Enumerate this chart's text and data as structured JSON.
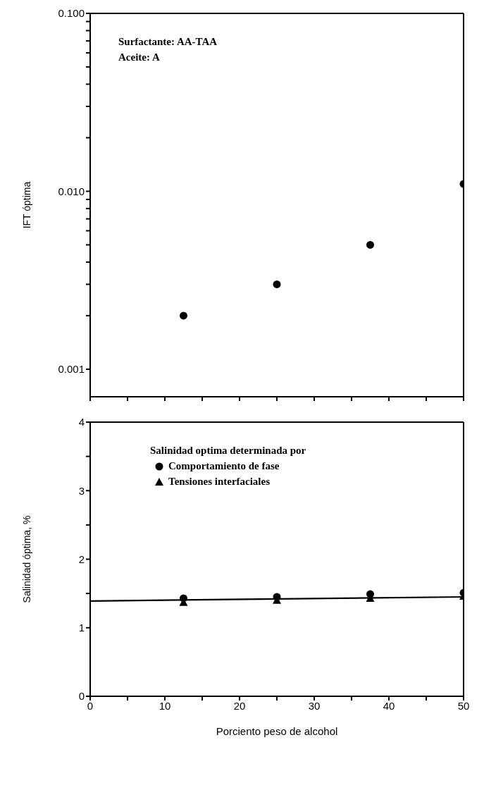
{
  "chart_data": [
    {
      "type": "scatter",
      "ylabel": "IFT óptima",
      "log": "y",
      "annotations": [
        "Surfactante: AA-TAA",
        "Aceite: A"
      ],
      "xlim": [
        0,
        50
      ],
      "xticks": [
        0,
        {
          "value": 5,
          "label": null
        },
        10,
        {
          "value": 15,
          "label": null
        },
        20,
        {
          "value": 25,
          "label": null
        },
        30,
        {
          "value": 35,
          "label": null
        },
        40,
        {
          "value": 45,
          "label": null
        },
        50
      ],
      "ylim": [
        0.0007,
        0.1
      ],
      "yticks": [
        {
          "value": 0.001,
          "label": "0.001"
        },
        {
          "value": 0.002,
          "label": null
        },
        {
          "value": 0.003,
          "label": null
        },
        {
          "value": 0.004,
          "label": null
        },
        {
          "value": 0.005,
          "label": null
        },
        {
          "value": 0.006,
          "label": null
        },
        {
          "value": 0.007,
          "label": null
        },
        {
          "value": 0.008,
          "label": null
        },
        {
          "value": 0.009,
          "label": null
        },
        {
          "value": 0.01,
          "label": "0.010"
        },
        {
          "value": 0.02,
          "label": null
        },
        {
          "value": 0.03,
          "label": null
        },
        {
          "value": 0.04,
          "label": null
        },
        {
          "value": 0.05,
          "label": null
        },
        {
          "value": 0.06,
          "label": null
        },
        {
          "value": 0.07,
          "label": null
        },
        {
          "value": 0.08,
          "label": null
        },
        {
          "value": 0.09,
          "label": null
        },
        {
          "value": 0.1,
          "label": "0.100"
        }
      ],
      "tick_labels": "y",
      "marker": "circle",
      "x": [
        12.5,
        25,
        37.5,
        50
      ],
      "series": [
        {
          "color": "#000000",
          "values": [
            0.002,
            0.003,
            0.005,
            0.011
          ]
        }
      ]
    },
    {
      "type": "scatter",
      "xlabel": "Porciento peso de alcohol",
      "ylabel": "Salinidad óptima, %",
      "legend_title": "Salinidad optima determinada por",
      "legend": "top",
      "xlim": [
        0,
        50
      ],
      "xticks": [
        0,
        {
          "value": 5,
          "label": null
        },
        10,
        {
          "value": 15,
          "label": null
        },
        20,
        {
          "value": 25,
          "label": null
        },
        30,
        {
          "value": 35,
          "label": null
        },
        40,
        {
          "value": 45,
          "label": null
        },
        50
      ],
      "ylim": [
        0,
        4
      ],
      "yticks": [
        0,
        1,
        {
          "value": 1.5,
          "label": null
        },
        2,
        {
          "value": 2.5,
          "label": null
        },
        3,
        {
          "value": 3.5,
          "label": null
        },
        4
      ],
      "x": [
        12.5,
        25,
        37.5,
        50
      ],
      "series": [
        {
          "name": "Comportamiento de fase",
          "color": "#000000",
          "marker": "circle",
          "values": [
            1.43,
            1.45,
            1.49,
            1.51
          ]
        },
        {
          "name": "Tensiones interfaciales",
          "color": "#000000",
          "marker": "triangle",
          "values": [
            1.37,
            1.4,
            1.43,
            1.46
          ]
        },
        {
          "type": "line",
          "color": "#000000",
          "marker": "none",
          "line_style": "solid",
          "x": [
            0,
            50
          ],
          "values": [
            1.39,
            1.45
          ]
        }
      ]
    }
  ]
}
